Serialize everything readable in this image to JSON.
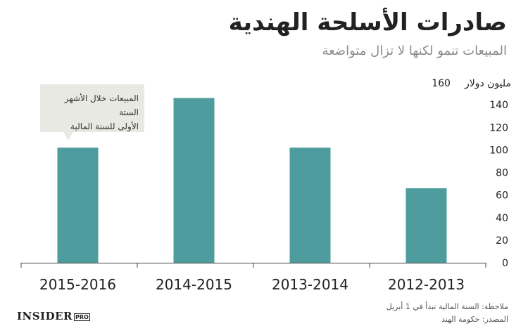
{
  "chart_data": {
    "type": "bar",
    "title": "صادرات الأسلحة الهندية",
    "subtitle": "المبيعات تنمو لكنها لا تزال متواضعة",
    "ylabel": "مليون دولار",
    "categories": [
      "2015-2016",
      "2014-2015",
      "2013-2014",
      "2012-2013"
    ],
    "values": [
      102,
      146,
      102,
      66
    ],
    "ylim": [
      0,
      160
    ],
    "yticks": [
      0,
      20,
      40,
      60,
      80,
      100,
      120,
      140,
      160
    ],
    "grid": false,
    "bar_color": "#4e9c9e",
    "annotation": "المبيعات خلال الأشهر الستة الأولى للسنة المالية"
  },
  "unit_label": "مليون دولار",
  "unit_top_tick": "160",
  "callout": {
    "line1": "المبيعات خلال الأشهر الستة",
    "line2": "الأولى للسنة المالية"
  },
  "logo": {
    "main": "INSIDER",
    "badge": "PRO"
  },
  "footer": {
    "note": "ملاحظة: السنة المالية تبدأ في 1 أبريل",
    "source": "المصدر: حكومة الهند"
  }
}
